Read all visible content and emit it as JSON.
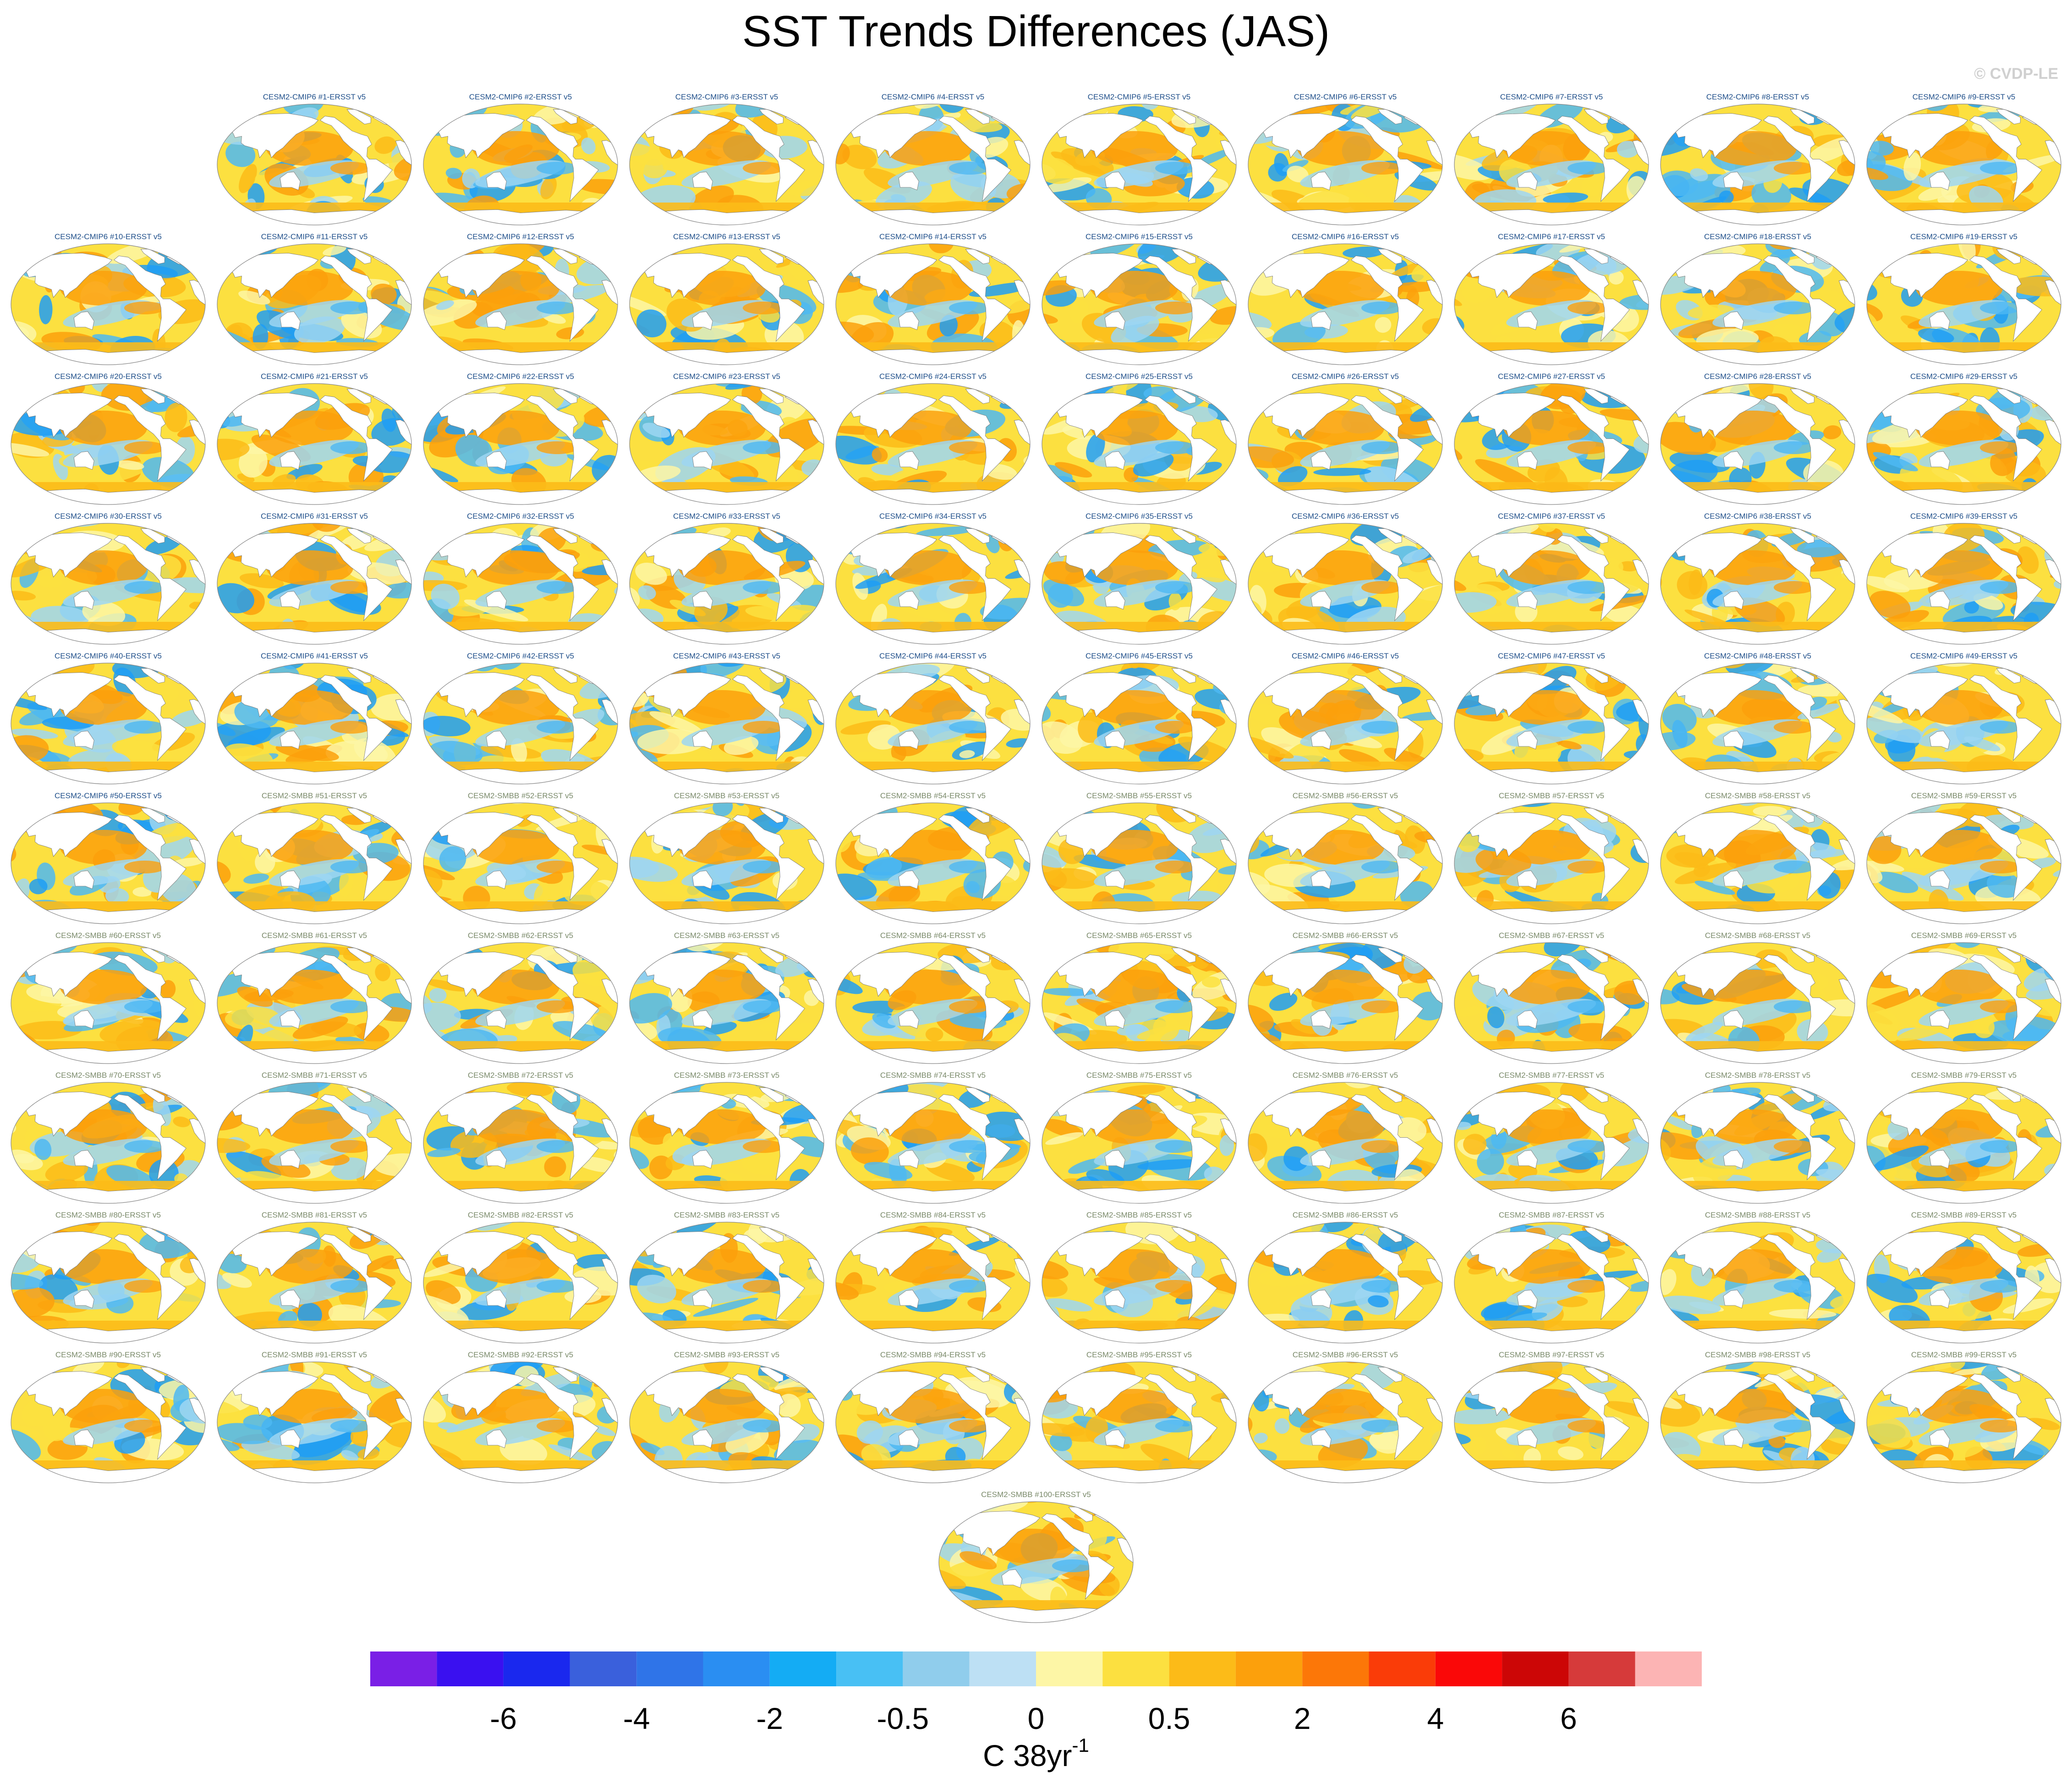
{
  "title": "SST Trends Differences (JAS)",
  "credit": "© CVDP-LE",
  "panel_suffix": "-ERSST v5",
  "groups": [
    {
      "model": "CESM2-CMIP6",
      "first": 1,
      "last": 50,
      "title_color": "#1f4f8a"
    },
    {
      "model": "CESM2-SMBB",
      "first": 51,
      "last": 100,
      "title_color": "#7a8a6a"
    }
  ],
  "panel_titles": [
    "CESM2-CMIP6 #1-ERSST v5",
    "CESM2-CMIP6 #2-ERSST v5",
    "CESM2-CMIP6 #3-ERSST v5",
    "CESM2-CMIP6 #4-ERSST v5",
    "CESM2-CMIP6 #5-ERSST v5",
    "CESM2-CMIP6 #6-ERSST v5",
    "CESM2-CMIP6 #7-ERSST v5",
    "CESM2-CMIP6 #8-ERSST v5",
    "CESM2-CMIP6 #9-ERSST v5",
    "CESM2-CMIP6 #10-ERSST v5",
    "CESM2-CMIP6 #11-ERSST v5",
    "CESM2-CMIP6 #12-ERSST v5",
    "CESM2-CMIP6 #13-ERSST v5",
    "CESM2-CMIP6 #14-ERSST v5",
    "CESM2-CMIP6 #15-ERSST v5",
    "CESM2-CMIP6 #16-ERSST v5",
    "CESM2-CMIP6 #17-ERSST v5",
    "CESM2-CMIP6 #18-ERSST v5",
    "CESM2-CMIP6 #19-ERSST v5",
    "CESM2-CMIP6 #20-ERSST v5",
    "CESM2-CMIP6 #21-ERSST v5",
    "CESM2-CMIP6 #22-ERSST v5",
    "CESM2-CMIP6 #23-ERSST v5",
    "CESM2-CMIP6 #24-ERSST v5",
    "CESM2-CMIP6 #25-ERSST v5",
    "CESM2-CMIP6 #26-ERSST v5",
    "CESM2-CMIP6 #27-ERSST v5",
    "CESM2-CMIP6 #28-ERSST v5",
    "CESM2-CMIP6 #29-ERSST v5",
    "CESM2-CMIP6 #30-ERSST v5",
    "CESM2-CMIP6 #31-ERSST v5",
    "CESM2-CMIP6 #32-ERSST v5",
    "CESM2-CMIP6 #33-ERSST v5",
    "CESM2-CMIP6 #34-ERSST v5",
    "CESM2-CMIP6 #35-ERSST v5",
    "CESM2-CMIP6 #36-ERSST v5",
    "CESM2-CMIP6 #37-ERSST v5",
    "CESM2-CMIP6 #38-ERSST v5",
    "CESM2-CMIP6 #39-ERSST v5",
    "CESM2-CMIP6 #40-ERSST v5",
    "CESM2-CMIP6 #41-ERSST v5",
    "CESM2-CMIP6 #42-ERSST v5",
    "CESM2-CMIP6 #43-ERSST v5",
    "CESM2-CMIP6 #44-ERSST v5",
    "CESM2-CMIP6 #45-ERSST v5",
    "CESM2-CMIP6 #46-ERSST v5",
    "CESM2-CMIP6 #47-ERSST v5",
    "CESM2-CMIP6 #48-ERSST v5",
    "CESM2-CMIP6 #49-ERSST v5",
    "CESM2-CMIP6 #50-ERSST v5",
    "CESM2-SMBB #51-ERSST v5",
    "CESM2-SMBB #52-ERSST v5",
    "CESM2-SMBB #53-ERSST v5",
    "CESM2-SMBB #54-ERSST v5",
    "CESM2-SMBB #55-ERSST v5",
    "CESM2-SMBB #56-ERSST v5",
    "CESM2-SMBB #57-ERSST v5",
    "CESM2-SMBB #58-ERSST v5",
    "CESM2-SMBB #59-ERSST v5",
    "CESM2-SMBB #60-ERSST v5",
    "CESM2-SMBB #61-ERSST v5",
    "CESM2-SMBB #62-ERSST v5",
    "CESM2-SMBB #63-ERSST v5",
    "CESM2-SMBB #64-ERSST v5",
    "CESM2-SMBB #65-ERSST v5",
    "CESM2-SMBB #66-ERSST v5",
    "CESM2-SMBB #67-ERSST v5",
    "CESM2-SMBB #68-ERSST v5",
    "CESM2-SMBB #69-ERSST v5",
    "CESM2-SMBB #70-ERSST v5",
    "CESM2-SMBB #71-ERSST v5",
    "CESM2-SMBB #72-ERSST v5",
    "CESM2-SMBB #73-ERSST v5",
    "CESM2-SMBB #74-ERSST v5",
    "CESM2-SMBB #75-ERSST v5",
    "CESM2-SMBB #76-ERSST v5",
    "CESM2-SMBB #77-ERSST v5",
    "CESM2-SMBB #78-ERSST v5",
    "CESM2-SMBB #79-ERSST v5",
    "CESM2-SMBB #80-ERSST v5",
    "CESM2-SMBB #81-ERSST v5",
    "CESM2-SMBB #82-ERSST v5",
    "CESM2-SMBB #83-ERSST v5",
    "CESM2-SMBB #84-ERSST v5",
    "CESM2-SMBB #85-ERSST v5",
    "CESM2-SMBB #86-ERSST v5",
    "CESM2-SMBB #87-ERSST v5",
    "CESM2-SMBB #88-ERSST v5",
    "CESM2-SMBB #89-ERSST v5",
    "CESM2-SMBB #90-ERSST v5",
    "CESM2-SMBB #91-ERSST v5",
    "CESM2-SMBB #92-ERSST v5",
    "CESM2-SMBB #93-ERSST v5",
    "CESM2-SMBB #94-ERSST v5",
    "CESM2-SMBB #95-ERSST v5",
    "CESM2-SMBB #96-ERSST v5",
    "CESM2-SMBB #97-ERSST v5",
    "CESM2-SMBB #98-ERSST v5",
    "CESM2-SMBB #99-ERSST v5",
    "CESM2-SMBB #100-ERSST v5"
  ],
  "colorbar": {
    "colors": [
      "#7a1fe6",
      "#3a10f0",
      "#1a28ee",
      "#3a60dc",
      "#2f74e8",
      "#2a8ef2",
      "#14acf4",
      "#48c0f4",
      "#90cdec",
      "#bde0f4",
      "#fdf6a6",
      "#fce040",
      "#fcbb18",
      "#fca00c",
      "#fc7708",
      "#fa3c08",
      "#fa0808",
      "#cc0606",
      "#d63a3a",
      "#fcb4b4"
    ],
    "tick_labels": [
      "-6",
      "-4",
      "-2",
      "-0.5",
      "0",
      "0.5",
      "2",
      "4",
      "6"
    ],
    "tick_boundary_index": [
      2,
      4,
      6,
      8,
      10,
      12,
      14,
      16,
      18
    ],
    "units_base": "C 38yr",
    "units_exponent": "-1"
  }
}
